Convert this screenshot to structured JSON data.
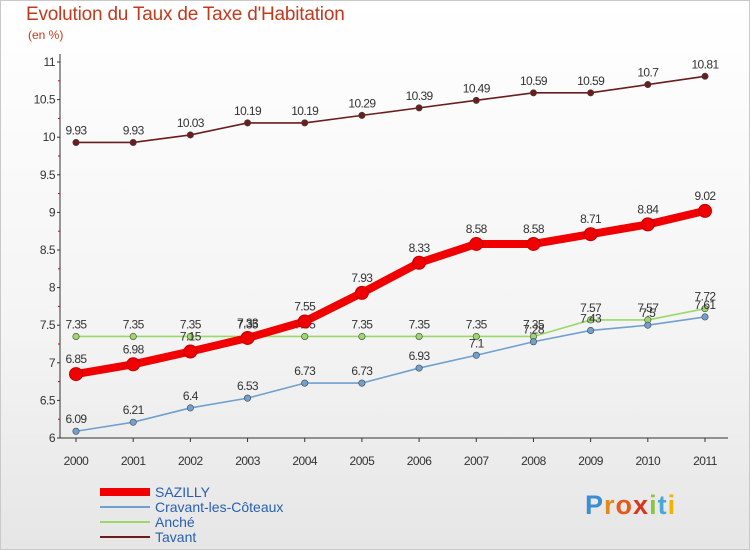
{
  "title": "Evolution du Taux de Taxe d'Habitation",
  "subtitle": "(en %)",
  "logo": {
    "text": "Proxiti",
    "letters": [
      "P",
      "r",
      "o",
      "x",
      "i",
      "t",
      "i"
    ]
  },
  "chart_data": {
    "type": "line",
    "x": [
      "2000",
      "2001",
      "2002",
      "2003",
      "2004",
      "2005",
      "2006",
      "2007",
      "2008",
      "2009",
      "2010",
      "2011"
    ],
    "ylim": [
      6,
      11
    ],
    "yticks": [
      6,
      6.5,
      7,
      7.5,
      8,
      8.5,
      9,
      9.5,
      10,
      10.5,
      11
    ],
    "ytick_labels": [
      "6",
      "6.5",
      "7",
      "7.5",
      "8",
      "8.5",
      "9",
      "9.5",
      "10",
      "10.5",
      "11"
    ],
    "grid": false,
    "legend_position": "bottom-left",
    "series": [
      {
        "name": "Tavant",
        "color": "#6b1d1d",
        "values": [
          9.93,
          9.93,
          10.03,
          10.19,
          10.19,
          10.29,
          10.39,
          10.49,
          10.59,
          10.59,
          10.7,
          10.81
        ],
        "labels": [
          "9.93",
          "9.93",
          "10.03",
          "10.19",
          "10.19",
          "10.29",
          "10.39",
          "10.49",
          "10.59",
          "10.59",
          "10.7",
          "10.81"
        ]
      },
      {
        "name": "Anché",
        "color": "#9bd86a",
        "values": [
          7.35,
          7.35,
          7.35,
          7.35,
          7.35,
          7.35,
          7.35,
          7.35,
          7.35,
          7.57,
          7.57,
          7.72
        ],
        "labels": [
          "7.35",
          "7.35",
          "7.35",
          "7.35",
          "7.35",
          "7.35",
          "7.35",
          "7.35",
          "7.35",
          "7.57",
          "7.57",
          "7.72"
        ]
      },
      {
        "name": "Cravant-les-Côteaux",
        "color": "#6fa0d0",
        "values": [
          6.09,
          6.21,
          6.4,
          6.53,
          6.73,
          6.73,
          6.93,
          7.1,
          7.28,
          7.43,
          7.5,
          7.61
        ],
        "labels": [
          "6.09",
          "6.21",
          "6.4",
          "6.53",
          "6.73",
          "6.73",
          "6.93",
          "7.1",
          "7.28",
          "7.43",
          "7.5",
          "7.61"
        ]
      },
      {
        "name": "SAZILLY",
        "color": "#f00000",
        "values": [
          6.85,
          6.98,
          7.15,
          7.33,
          7.55,
          7.93,
          8.33,
          8.58,
          8.58,
          8.71,
          8.84,
          9.02
        ],
        "labels": [
          "6.85",
          "6.98",
          "7.15",
          "7.33",
          "7.55",
          "7.93",
          "8.33",
          "8.58",
          "8.58",
          "8.71",
          "8.84",
          "9.02"
        ]
      }
    ]
  }
}
